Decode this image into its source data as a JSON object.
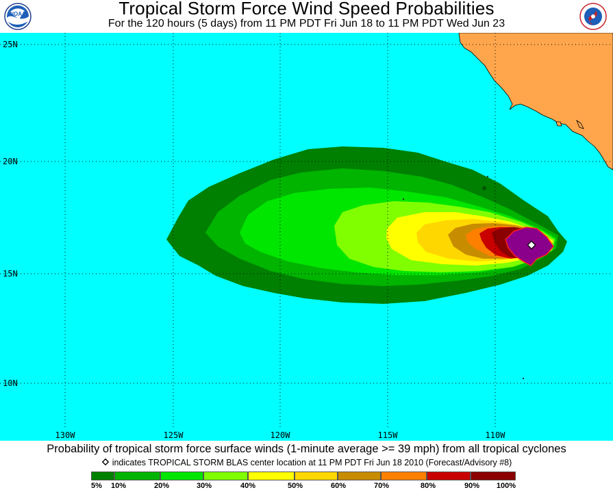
{
  "header": {
    "title": "Tropical Storm Force Wind Speed Probabilities",
    "subtitle": "For the 120 hours (5 days) from 11 PM PDT Fri Jun 18 to 11 PM PDT Wed Jun 23",
    "logo_left": "noaa-logo",
    "logo_right": "national-weather-service-logo"
  },
  "map": {
    "lat_labels": [
      "25N",
      "20N",
      "15N",
      "10N"
    ],
    "lon_labels": [
      "130W",
      "125W",
      "120W",
      "115W",
      "110W"
    ],
    "colors": {
      "ocean": "#00ffff",
      "land": "#ffa64d",
      "p5": "#008000",
      "p10": "#00b400",
      "p20": "#00e600",
      "p30": "#80ff00",
      "p40": "#ffff00",
      "p50": "#ffd700",
      "p60": "#c88c00",
      "p70": "#ff8000",
      "p80": "#c80000",
      "p90": "#8b0000",
      "p100": "#8b008b"
    },
    "storm_marker": "diamond-icon"
  },
  "footer": {
    "title": "Probability of tropical storm force surface winds (1-minute average >= 39 mph) from all tropical cyclones",
    "note": "indicates TROPICAL STORM BLAS center location at 11 PM PDT Fri Jun 18 2010 (Forecast/Advisory #8)",
    "legend_labels": [
      "5%",
      "10%",
      "20%",
      "30%",
      "40%",
      "50%",
      "60%",
      "70%",
      "80%",
      "90%",
      "100%"
    ]
  }
}
